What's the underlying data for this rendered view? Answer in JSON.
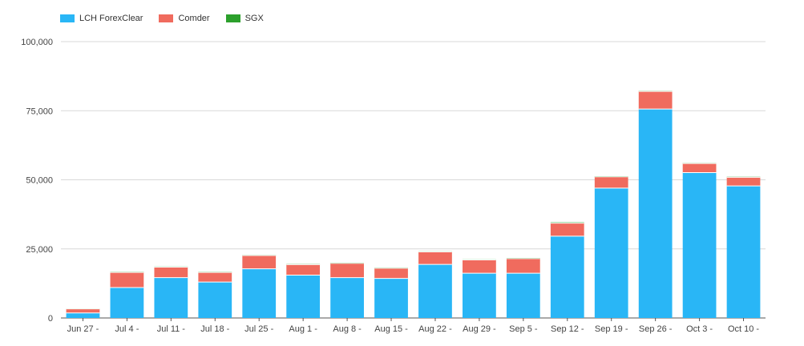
{
  "chart_data": {
    "type": "bar",
    "stacked": true,
    "title": "",
    "xlabel": "",
    "ylabel": "",
    "ylim": [
      0,
      100000
    ],
    "yticks": [
      "0",
      "25,000",
      "50,000",
      "75,000",
      "100,000"
    ],
    "ytick_values": [
      0,
      25000,
      50000,
      75000,
      100000
    ],
    "grid": true,
    "legend_position": "top-left",
    "categories": [
      "Jun 27 -",
      "Jul 4 -",
      "Jul 11 -",
      "Jul 18 -",
      "Jul 25 -",
      "Aug 1 -",
      "Aug 8 -",
      "Aug 15 -",
      "Aug 22 -",
      "Aug 29 -",
      "Sep 5 -",
      "Sep 12 -",
      "Sep 19 -",
      "Sep 26 -",
      "Oct 3 -",
      "Oct 10 -"
    ],
    "series": [
      {
        "name": "LCH ForexClear",
        "color": "#29B6F6",
        "values": [
          1800,
          11000,
          14600,
          13000,
          17800,
          15500,
          14600,
          14300,
          19400,
          16200,
          16200,
          29600,
          47000,
          75600,
          52600,
          47800
        ]
      },
      {
        "name": "Comder",
        "color": "#F06B5E",
        "values": [
          1500,
          5500,
          3800,
          3500,
          4800,
          3800,
          5200,
          3700,
          4500,
          4800,
          5300,
          4700,
          4100,
          6400,
          3300,
          3100
        ]
      },
      {
        "name": "SGX",
        "color": "#2CA02C",
        "values": [
          100,
          200,
          200,
          200,
          200,
          200,
          200,
          200,
          200,
          200,
          200,
          300,
          200,
          200,
          200,
          200
        ]
      }
    ]
  }
}
